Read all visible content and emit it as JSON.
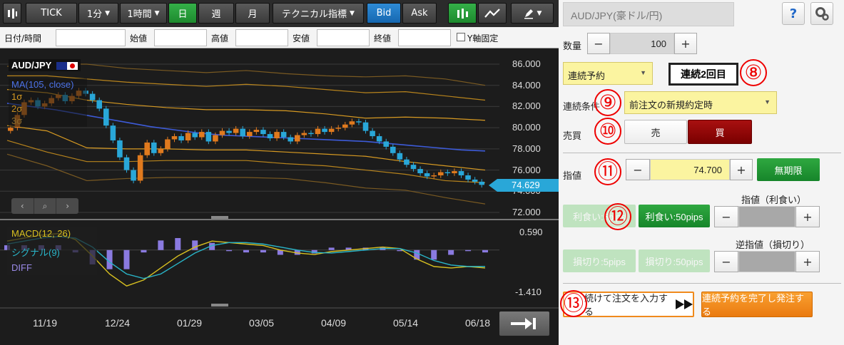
{
  "toolbar": {
    "tick_label": "TICK",
    "interval_1": "1分",
    "interval_2": "1時間",
    "day_label": "日",
    "week_label": "週",
    "month_label": "月",
    "technical_label": "テクニカル指標",
    "bid_label": "Bid",
    "ask_label": "Ask"
  },
  "ohlc": {
    "datetime_label": "日付/時間",
    "open_label": "始値",
    "high_label": "高値",
    "low_label": "安値",
    "close_label": "終値",
    "yaxis_fixed_label": "Y軸固定"
  },
  "chart_overlay": {
    "pair_label": "AUD/JPY",
    "ma_label": "MA(105, close)",
    "sigma1": "1σ",
    "sigma2": "2σ",
    "sigma3": "3σ",
    "macd_label": "MACD(12, 26)",
    "signal_label": "シグナル(9)",
    "diff_label": "DIFF",
    "current_price": "74.629"
  },
  "chart_data": {
    "type": "candlestick",
    "price_axis": [
      "86.000",
      "84.000",
      "82.000",
      "80.000",
      "78.000",
      "76.000",
      "74.000",
      "72.000"
    ],
    "price_range": [
      72,
      86
    ],
    "macd_axis": [
      "0.590",
      "-1.410"
    ],
    "macd_range": [
      -1.41,
      0.59
    ],
    "x_ticks": [
      "11/19",
      "12/24",
      "01/29",
      "03/05",
      "04/09",
      "05/14",
      "06/18"
    ],
    "close_series": [
      80.0,
      81.2,
      82.4,
      82.6,
      82.0,
      82.3,
      82.8,
      83.1,
      82.5,
      83.0,
      83.5,
      83.2,
      82.6,
      81.8,
      80.2,
      78.8,
      77.2,
      76.0,
      75.0,
      77.4,
      78.6,
      77.6,
      78.0,
      78.9,
      79.2,
      78.8,
      79.5,
      79.1,
      79.6,
      78.7,
      79.3,
      79.7,
      79.5,
      79.9,
      79.2,
      79.6,
      79.8,
      79.4,
      79.0,
      79.6,
      79.1,
      78.7,
      79.3,
      79.5,
      79.4,
      79.9,
      79.6,
      79.9,
      80.0,
      80.3,
      80.6,
      80.5,
      79.7,
      79.2,
      78.7,
      78.2,
      77.6,
      77.0,
      76.5,
      76.1,
      75.7,
      75.4,
      75.5,
      75.8,
      75.7,
      75.9,
      75.5,
      75.1,
      74.9,
      74.6
    ],
    "ma_series": [
      82.3,
      82.0,
      81.7,
      81.3,
      80.9,
      80.5,
      80.1,
      79.8,
      79.5,
      79.3,
      79.2,
      79.1,
      79.0,
      78.9,
      78.8,
      78.7,
      78.5,
      78.3,
      78.1,
      77.9,
      77.8
    ],
    "bb_upper_3": [
      85.8,
      86.0,
      86.0,
      85.6,
      85.4,
      85.2,
      85.4,
      85.1,
      84.9,
      84.8,
      84.9,
      84.6,
      84.0
    ],
    "bb_upper_2": [
      84.9,
      84.9,
      84.6,
      84.3,
      84.1,
      83.9,
      84.1,
      83.9,
      83.6,
      83.3,
      83.4,
      83.0,
      82.6
    ],
    "bb_upper_1": [
      83.6,
      83.3,
      82.6,
      82.2,
      81.9,
      81.7,
      81.7,
      81.6,
      81.3,
      80.9,
      81.0,
      80.9,
      80.7
    ],
    "bb_lower_1": [
      80.2,
      79.7,
      78.1,
      78.0,
      78.0,
      77.9,
      77.9,
      77.7,
      77.5,
      77.3,
      76.8,
      76.4,
      76.0
    ],
    "bb_lower_2": [
      78.8,
      77.7,
      76.8,
      76.8,
      76.9,
      76.9,
      76.9,
      76.6,
      76.4,
      76.0,
      75.6,
      75.0,
      74.8
    ],
    "bb_lower_3": [
      77.5,
      76.4,
      75.0,
      75.2,
      75.3,
      75.3,
      75.3,
      75.2,
      74.8,
      74.3,
      74.1,
      73.4,
      72.8
    ],
    "macd_line": [
      0.3,
      0.4,
      0.5,
      0.55,
      0.35,
      -0.2,
      -0.8,
      -1.2,
      -1.0,
      -0.6,
      -0.2,
      0.1,
      0.3,
      0.25,
      0.2,
      0.15,
      0.0,
      -0.1,
      -0.15,
      -0.05,
      0.0,
      0.05,
      0.1,
      0.05,
      -0.3,
      -0.55,
      -0.6,
      -0.55,
      -0.6
    ],
    "signal_line": [
      0.2,
      0.3,
      0.4,
      0.45,
      0.4,
      0.1,
      -0.4,
      -0.8,
      -0.95,
      -0.8,
      -0.45,
      -0.1,
      0.15,
      0.25,
      0.25,
      0.2,
      0.1,
      0.0,
      -0.08,
      -0.1,
      -0.05,
      0.0,
      0.05,
      0.05,
      -0.1,
      -0.35,
      -0.5,
      -0.55,
      -0.55
    ]
  },
  "order": {
    "symbol": "AUD/JPY(豪ドル/円)",
    "help_label": "?",
    "quantity_label": "数量",
    "quantity_value": "100",
    "minus": "−",
    "plus": "+",
    "order_type": "連続予約",
    "sequence_label": "連続2回目",
    "condition_label": "連続条件",
    "condition_value": "前注文の新規約定時",
    "side_label": "売買",
    "sell_label": "売",
    "buy_label": "買",
    "price_label": "指値",
    "price_value": "74.700",
    "unlimited_label": "無期限",
    "tp_header": "指値（利食い）",
    "tp_5": "利食い:5pips",
    "tp_50": "利食い:50pips",
    "sl_header": "逆指値（損切り）",
    "sl_5": "損切り:5pips",
    "sl_50": "損切り:50pips",
    "continue_label": "続けて注文を入力する",
    "finish_label": "連続予約を完了し発注する"
  },
  "annotations": [
    "⑧",
    "⑨",
    "⑩",
    "⑪",
    "⑫",
    "⑬"
  ],
  "colors": {
    "up": "#e07a1e",
    "down": "#29a7d8",
    "ma": "#3d5bd8",
    "band": "#b8841c",
    "macd": "#d8c020",
    "signal": "#29b5c8",
    "hist": "#8a7ae0"
  }
}
